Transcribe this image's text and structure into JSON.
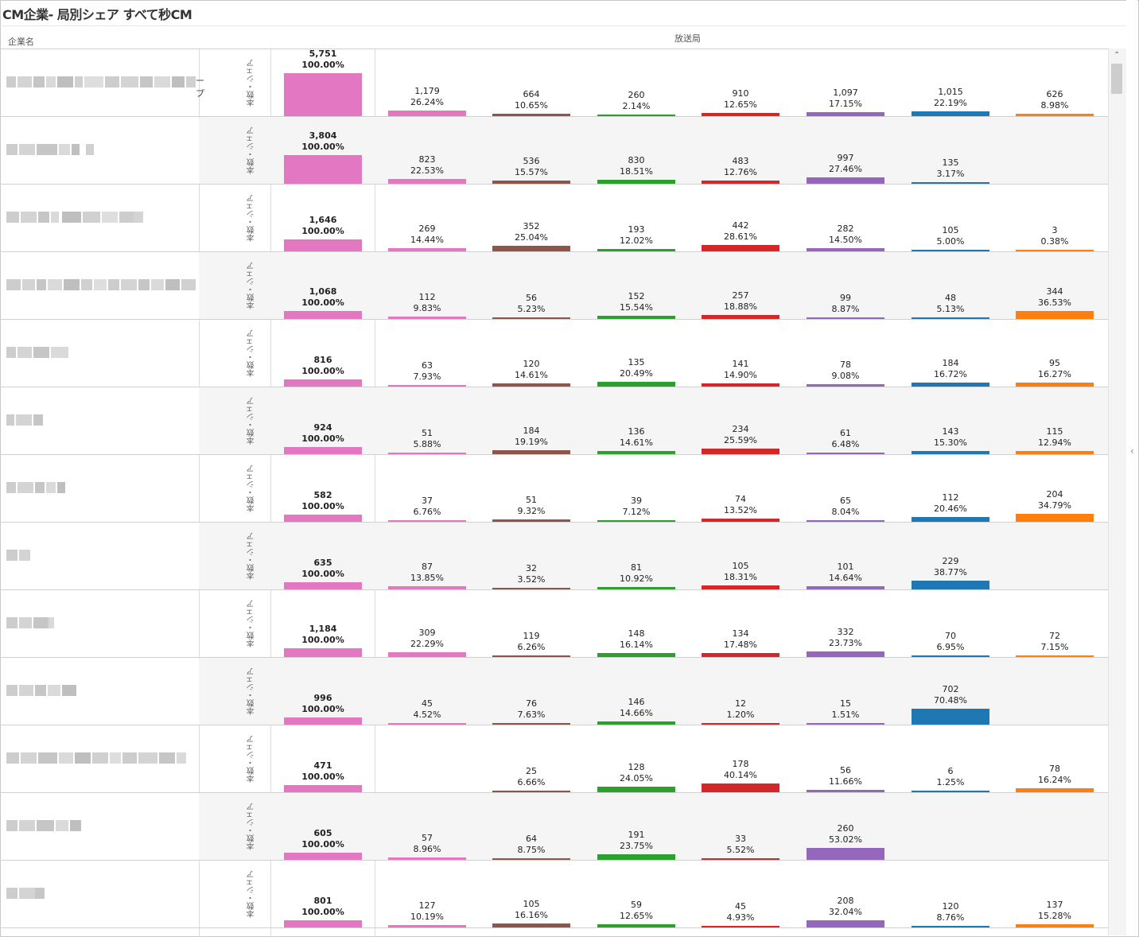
{
  "title": "CM企業- 局別シェア すべて秒CM",
  "header": {
    "company_col": "企業名",
    "station_col": "放送局"
  },
  "row_axis_label": "本数・シェア",
  "company_name_fragments": [
    "ープ"
  ],
  "colors": {
    "total": "#e377c2",
    "stations": [
      "#e377c2",
      "#8c564b",
      "#2ca02c",
      "#d62728",
      "#9467bd",
      "#1f77b4",
      "#ff7f0e"
    ]
  },
  "chart_data": {
    "type": "bar",
    "title": "CM企業- 局別シェア すべて秒CM",
    "xlabel": "放送局",
    "ylabel": "企業名",
    "measure_label": "本数・シェア",
    "rows": [
      {
        "total": "5,751",
        "total_pct": "100.00%",
        "name_suffix": "ープ",
        "cells": [
          [
            "1,179",
            "26.24%"
          ],
          [
            "664",
            "10.65%"
          ],
          [
            "260",
            "2.14%"
          ],
          [
            "910",
            "12.65%"
          ],
          [
            "1,097",
            "17.15%"
          ],
          [
            "1,015",
            "22.19%"
          ],
          [
            "626",
            "8.98%"
          ]
        ]
      },
      {
        "total": "3,804",
        "total_pct": "100.00%",
        "cells": [
          [
            "823",
            "22.53%"
          ],
          [
            "536",
            "15.57%"
          ],
          [
            "830",
            "18.51%"
          ],
          [
            "483",
            "12.76%"
          ],
          [
            "997",
            "27.46%"
          ],
          [
            "135",
            "3.17%"
          ],
          null
        ]
      },
      {
        "total": "1,646",
        "total_pct": "100.00%",
        "cells": [
          [
            "269",
            "14.44%"
          ],
          [
            "352",
            "25.04%"
          ],
          [
            "193",
            "12.02%"
          ],
          [
            "442",
            "28.61%"
          ],
          [
            "282",
            "14.50%"
          ],
          [
            "105",
            "5.00%"
          ],
          [
            "3",
            "0.38%"
          ]
        ]
      },
      {
        "total": "1,068",
        "total_pct": "100.00%",
        "cells": [
          [
            "112",
            "9.83%"
          ],
          [
            "56",
            "5.23%"
          ],
          [
            "152",
            "15.54%"
          ],
          [
            "257",
            "18.88%"
          ],
          [
            "99",
            "8.87%"
          ],
          [
            "48",
            "5.13%"
          ],
          [
            "344",
            "36.53%"
          ]
        ]
      },
      {
        "total": "816",
        "total_pct": "100.00%",
        "cells": [
          [
            "63",
            "7.93%"
          ],
          [
            "120",
            "14.61%"
          ],
          [
            "135",
            "20.49%"
          ],
          [
            "141",
            "14.90%"
          ],
          [
            "78",
            "9.08%"
          ],
          [
            "184",
            "16.72%"
          ],
          [
            "95",
            "16.27%"
          ]
        ]
      },
      {
        "total": "924",
        "total_pct": "100.00%",
        "cells": [
          [
            "51",
            "5.88%"
          ],
          [
            "184",
            "19.19%"
          ],
          [
            "136",
            "14.61%"
          ],
          [
            "234",
            "25.59%"
          ],
          [
            "61",
            "6.48%"
          ],
          [
            "143",
            "15.30%"
          ],
          [
            "115",
            "12.94%"
          ]
        ]
      },
      {
        "total": "582",
        "total_pct": "100.00%",
        "cells": [
          [
            "37",
            "6.76%"
          ],
          [
            "51",
            "9.32%"
          ],
          [
            "39",
            "7.12%"
          ],
          [
            "74",
            "13.52%"
          ],
          [
            "65",
            "8.04%"
          ],
          [
            "112",
            "20.46%"
          ],
          [
            "204",
            "34.79%"
          ]
        ]
      },
      {
        "total": "635",
        "total_pct": "100.00%",
        "cells": [
          [
            "87",
            "13.85%"
          ],
          [
            "32",
            "3.52%"
          ],
          [
            "81",
            "10.92%"
          ],
          [
            "105",
            "18.31%"
          ],
          [
            "101",
            "14.64%"
          ],
          [
            "229",
            "38.77%"
          ],
          null
        ]
      },
      {
        "total": "1,184",
        "total_pct": "100.00%",
        "cells": [
          [
            "309",
            "22.29%"
          ],
          [
            "119",
            "6.26%"
          ],
          [
            "148",
            "16.14%"
          ],
          [
            "134",
            "17.48%"
          ],
          [
            "332",
            "23.73%"
          ],
          [
            "70",
            "6.95%"
          ],
          [
            "72",
            "7.15%"
          ]
        ]
      },
      {
        "total": "996",
        "total_pct": "100.00%",
        "cells": [
          [
            "45",
            "4.52%"
          ],
          [
            "76",
            "7.63%"
          ],
          [
            "146",
            "14.66%"
          ],
          [
            "12",
            "1.20%"
          ],
          [
            "15",
            "1.51%"
          ],
          [
            "702",
            "70.48%"
          ],
          null
        ]
      },
      {
        "total": "471",
        "total_pct": "100.00%",
        "cells": [
          null,
          [
            "25",
            "6.66%"
          ],
          [
            "128",
            "24.05%"
          ],
          [
            "178",
            "40.14%"
          ],
          [
            "56",
            "11.66%"
          ],
          [
            "6",
            "1.25%"
          ],
          [
            "78",
            "16.24%"
          ]
        ]
      },
      {
        "total": "605",
        "total_pct": "100.00%",
        "cells": [
          [
            "57",
            "8.96%"
          ],
          [
            "64",
            "8.75%"
          ],
          [
            "191",
            "23.75%"
          ],
          [
            "33",
            "5.52%"
          ],
          [
            "260",
            "53.02%"
          ],
          null,
          null
        ]
      },
      {
        "total": "801",
        "total_pct": "100.00%",
        "cells": [
          [
            "127",
            "10.19%"
          ],
          [
            "105",
            "16.16%"
          ],
          [
            "59",
            "12.65%"
          ],
          [
            "45",
            "4.93%"
          ],
          [
            "208",
            "32.04%"
          ],
          [
            "120",
            "8.76%"
          ],
          [
            "137",
            "15.28%"
          ]
        ]
      }
    ]
  }
}
